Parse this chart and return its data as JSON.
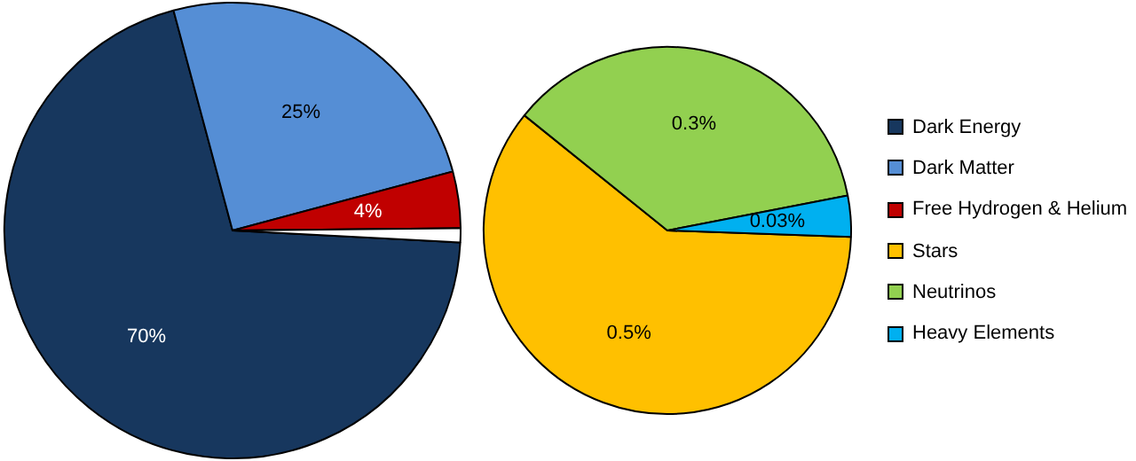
{
  "chart_data": [
    {
      "type": "pie",
      "categories": [
        "Dark Energy",
        "Dark Matter",
        "Free Hydrogen & Helium",
        null
      ],
      "values": [
        70,
        25,
        4,
        1
      ],
      "colors": [
        "#17375e",
        "#558ed5",
        "#c00000",
        "#ffffff"
      ],
      "value_labels": [
        "70%",
        "25%",
        "4%",
        null
      ],
      "legend": "right"
    },
    {
      "type": "pie",
      "categories": [
        "Stars",
        "Neutrinos",
        "Heavy Elements"
      ],
      "values": [
        0.5,
        0.3,
        0.03
      ],
      "colors": [
        "#ffc000",
        "#92d050",
        "#00b0f0"
      ],
      "value_labels": [
        "0.5%",
        "0.3%",
        "0.03%"
      ],
      "legend": "right"
    }
  ]
}
